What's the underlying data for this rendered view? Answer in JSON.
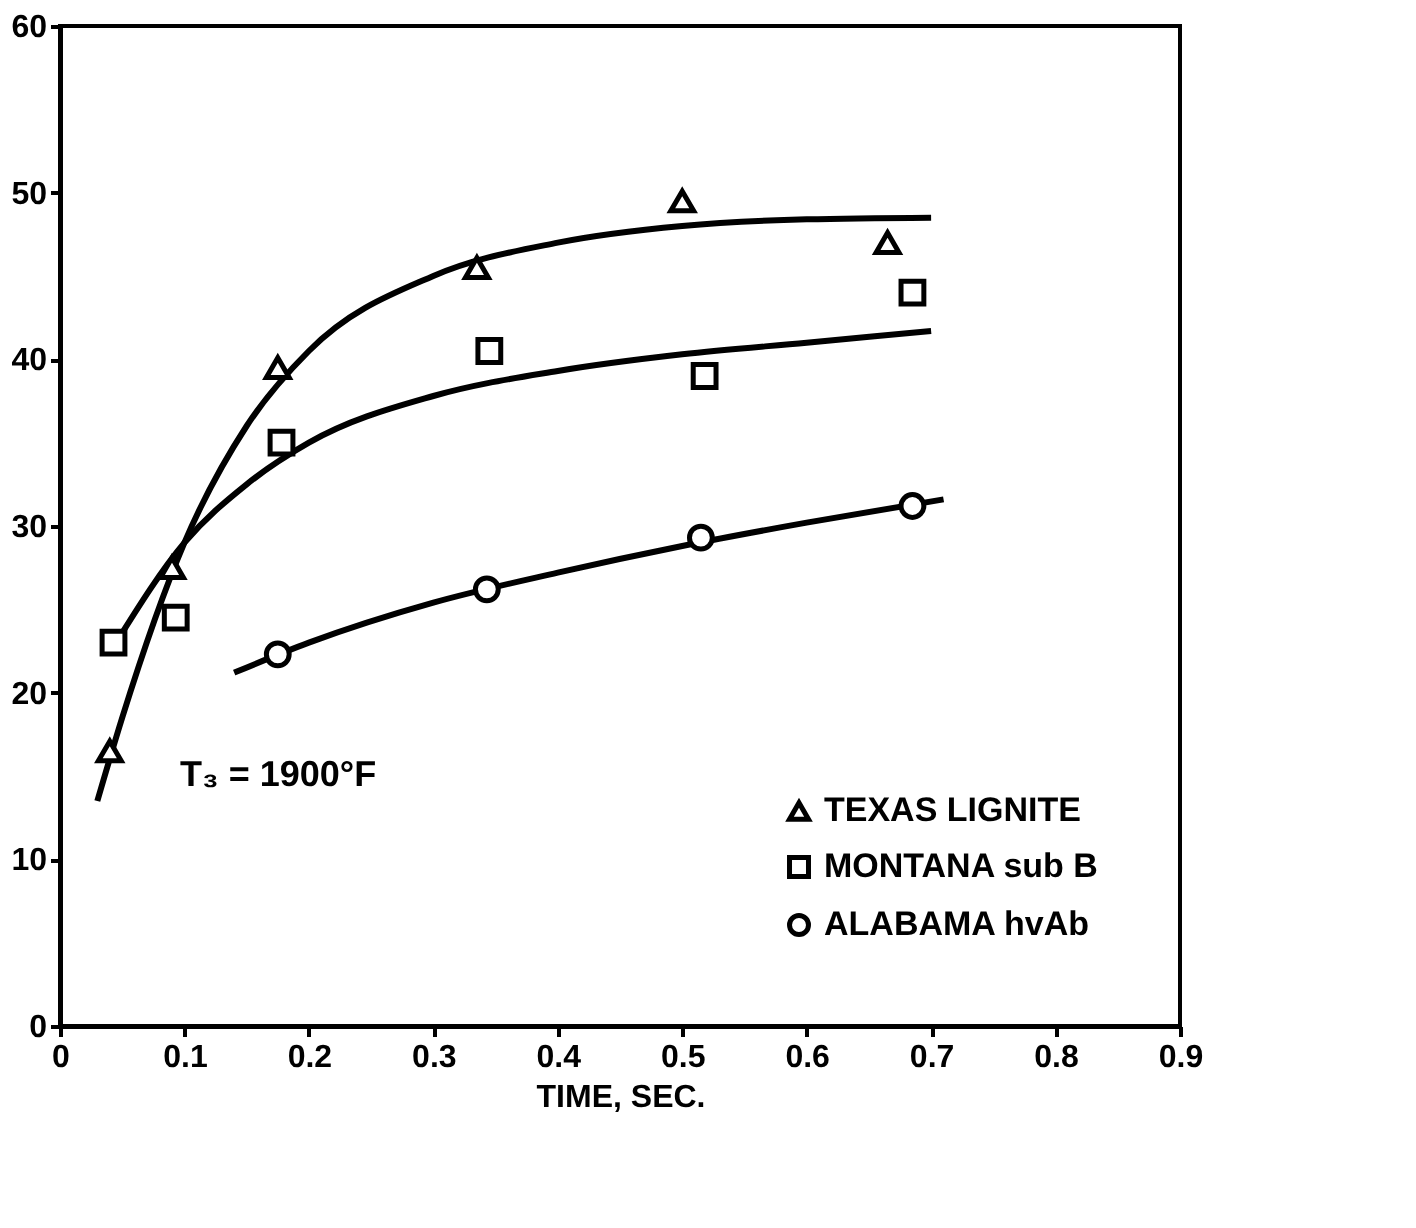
{
  "chart_data": {
    "type": "scatter",
    "xlabel": "TIME, SEC.",
    "xlim": [
      0,
      0.9
    ],
    "xticks": [
      0,
      0.1,
      0.2,
      0.3,
      0.4,
      0.5,
      0.6,
      0.7,
      0.8,
      0.9
    ],
    "ylim": [
      0,
      60
    ],
    "yticks": [
      0,
      10,
      20,
      30,
      40,
      50,
      60
    ],
    "grid": false,
    "legend": "bottom right",
    "annotations": [
      "T₃ = 1900°F"
    ],
    "series": [
      {
        "name": "TEXAS LIGNITE",
        "marker": "triangle",
        "color": "#000000",
        "x": [
          0.04,
          0.09,
          0.175,
          0.335,
          0.5,
          0.665
        ],
        "values": [
          16.5,
          27.5,
          39.5,
          45.5,
          49.5,
          47
        ]
      },
      {
        "name": "MONTANA sub B",
        "marker": "square",
        "color": "#000000",
        "x": [
          0.043,
          0.093,
          0.178,
          0.345,
          0.518,
          0.685
        ],
        "values": [
          23,
          24.5,
          35,
          40.5,
          39,
          44
        ]
      },
      {
        "name": "ALABAMA hvAb",
        "marker": "circle",
        "color": "#000000",
        "x": [
          0.175,
          0.343,
          0.515,
          0.685
        ],
        "values": [
          22.3,
          26.2,
          29.3,
          31.2
        ]
      },
      {
        "type": "line",
        "color": "#000000",
        "x": [
          0.03,
          0.05,
          0.1,
          0.15,
          0.2,
          0.3,
          0.4,
          0.5,
          0.6,
          0.7
        ],
        "values": [
          13.5,
          18.5,
          29,
          36,
          40.5,
          45,
          47,
          48,
          48.4,
          48.5
        ]
      },
      {
        "type": "line",
        "color": "#000000",
        "x": [
          0.045,
          0.1,
          0.15,
          0.2,
          0.3,
          0.4,
          0.5,
          0.6,
          0.7
        ],
        "values": [
          23,
          29,
          32.5,
          35,
          37.8,
          39.3,
          40.3,
          41,
          41.7
        ]
      },
      {
        "type": "line",
        "color": "#000000",
        "x": [
          0.14,
          0.2,
          0.3,
          0.4,
          0.5,
          0.6,
          0.71
        ],
        "values": [
          21.2,
          23,
          25.4,
          27.2,
          28.8,
          30.2,
          31.6
        ]
      }
    ]
  }
}
